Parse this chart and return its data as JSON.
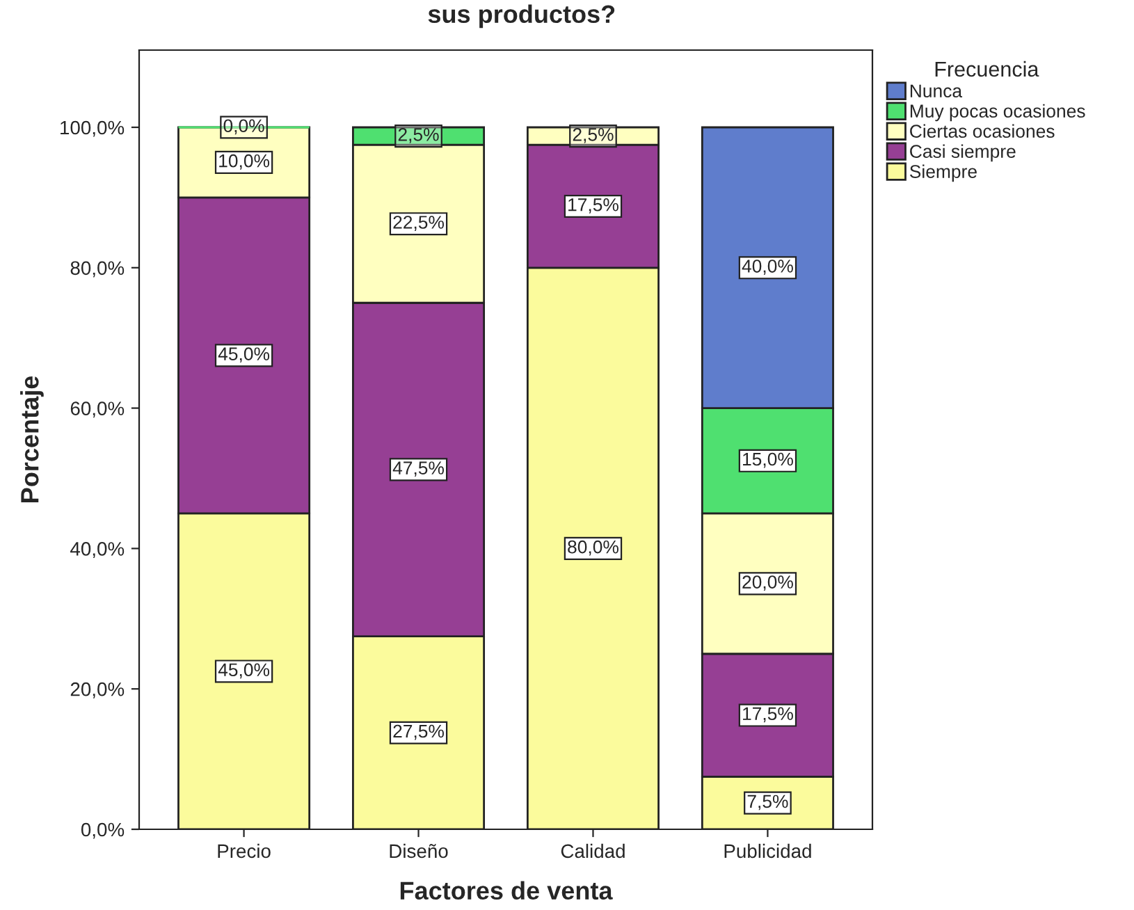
{
  "chart_data": {
    "type": "bar",
    "stacked": true,
    "title": "sus productos?",
    "xlabel": "Factores de venta",
    "ylabel": "Porcentaje",
    "legend_title": "Frecuencia",
    "legend": "top right",
    "grid": false,
    "categories": [
      "Precio",
      "Diseño",
      "Calidad",
      "Publicidad"
    ],
    "ylim": [
      0,
      111
    ],
    "yticks": [
      {
        "value": 0,
        "label": "0,0%"
      },
      {
        "value": 20,
        "label": "20,0%"
      },
      {
        "value": 40,
        "label": "40,0%"
      },
      {
        "value": 60,
        "label": "60,0%"
      },
      {
        "value": 80,
        "label": "80,0%"
      },
      {
        "value": 100,
        "label": "100,0%"
      }
    ],
    "series": [
      {
        "name": "Siempre",
        "color": "#fbfb9c",
        "values": [
          45,
          27.5,
          80,
          7.5
        ],
        "value_labels": [
          "45,0%",
          "27,5%",
          "80,0%",
          "7,5%"
        ]
      },
      {
        "name": "Casi siempre",
        "color": "#963f94",
        "values": [
          45,
          47.5,
          17.5,
          17.5
        ],
        "value_labels": [
          "45,0%",
          "47,5%",
          "17,5%",
          "17,5%"
        ]
      },
      {
        "name": "Ciertas ocasiones",
        "color": "#ffffc0",
        "values": [
          10,
          22.5,
          2.5,
          20
        ],
        "value_labels": [
          "10,0%",
          "22,5%",
          "2,5%",
          "20,0%"
        ]
      },
      {
        "name": "Muy pocas ocasiones",
        "color": "#4fe070",
        "values": [
          0,
          2.5,
          null,
          15
        ],
        "value_labels": [
          "0,0%",
          "2,5%",
          null,
          "15,0%"
        ]
      },
      {
        "name": "Nunca",
        "color": "#5f7dcc",
        "values": [
          null,
          null,
          null,
          40
        ],
        "value_labels": [
          null,
          null,
          null,
          "40,0%"
        ]
      }
    ]
  }
}
